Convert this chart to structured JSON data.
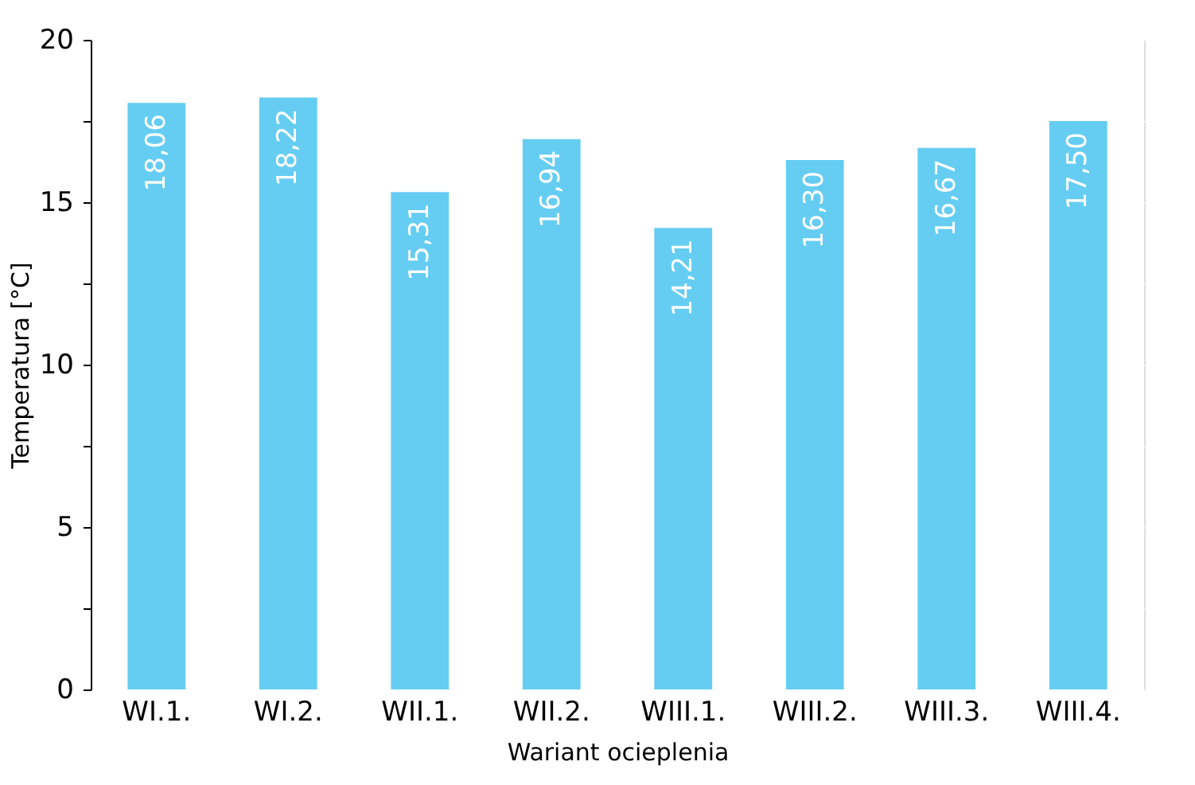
{
  "chart_data": {
    "type": "bar",
    "xlabel": "Wariant ocieplenia",
    "ylabel": "Temperatura [°C]",
    "categories": [
      "WI.1.",
      "WI.2.",
      "WII.1.",
      "WII.2.",
      "WIII.1.",
      "WIII.2.",
      "WIII.3.",
      "WIII.4."
    ],
    "values": [
      18.06,
      18.22,
      15.31,
      16.94,
      14.21,
      16.3,
      16.67,
      17.5
    ],
    "value_labels": [
      "18,06",
      "18,22",
      "15,31",
      "16,94",
      "14,21",
      "16,30",
      "16,67",
      "17,50"
    ],
    "color": "#66cdf2",
    "ylim": [
      0,
      20
    ],
    "yticks": [
      0,
      {
        "value": 2.5,
        "label": null
      },
      5,
      {
        "value": 7.5,
        "label": null
      },
      10,
      {
        "value": 12.5,
        "label": null
      },
      15,
      {
        "value": 17.5,
        "label": null
      },
      20
    ],
    "grid": true
  }
}
